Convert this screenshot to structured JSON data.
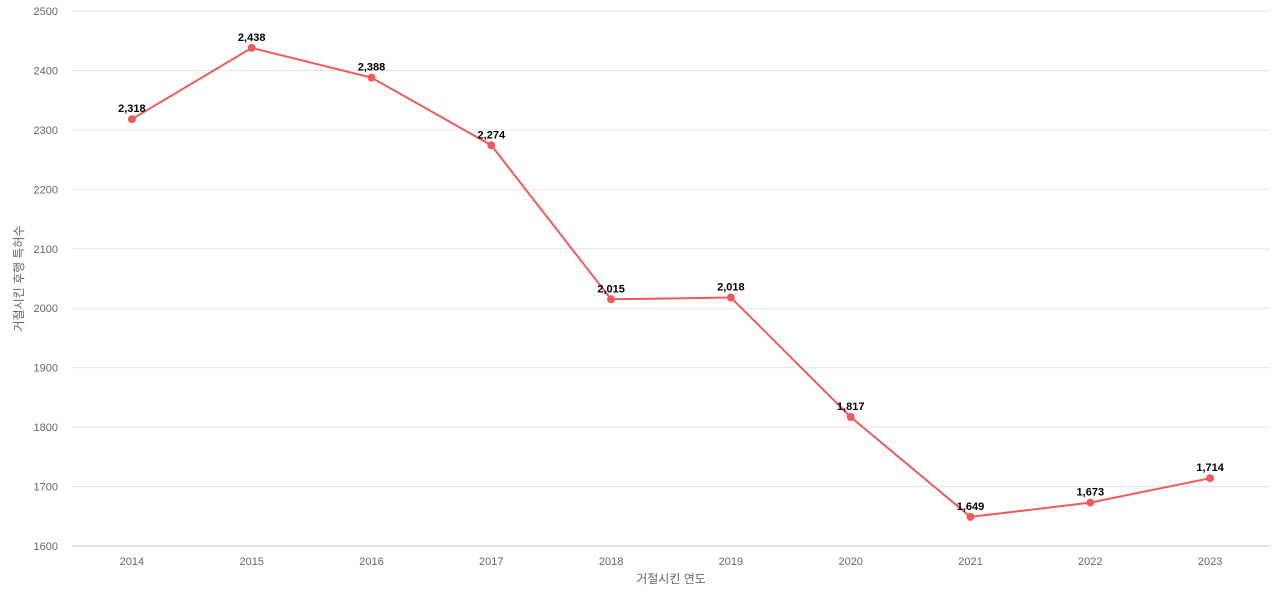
{
  "chart_data": {
    "type": "line",
    "title": "",
    "xlabel": "거절시킨 연도",
    "ylabel": "거절시킨 후행 특허수",
    "categories": [
      "2014",
      "2015",
      "2016",
      "2017",
      "2018",
      "2019",
      "2020",
      "2021",
      "2022",
      "2023"
    ],
    "series": [
      {
        "values": [
          2318,
          2438,
          2388,
          2274,
          2015,
          2018,
          1817,
          1649,
          1673,
          1714
        ],
        "labels": [
          "2,318",
          "2,438",
          "2,388",
          "2,274",
          "2,015",
          "2,018",
          "1,817",
          "1,649",
          "1,673",
          "1,714"
        ],
        "color": "#ee5b5b"
      }
    ],
    "ylim": [
      1600,
      2500
    ],
    "yticks": [
      "1600",
      "1700",
      "1800",
      "1900",
      "2000",
      "2100",
      "2200",
      "2300",
      "2400",
      "2500"
    ],
    "grid": true,
    "legend": "none"
  }
}
